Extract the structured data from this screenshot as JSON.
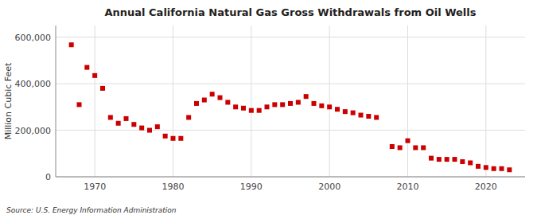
{
  "chart_data": {
    "type": "scatter",
    "title": "Annual California Natural Gas Gross Withdrawals from Oil Wells",
    "ylabel": "Million Cubic Feet",
    "annotations": [
      "Source: U.S. Energy Information Administration"
    ],
    "x": [
      1967,
      1968,
      1969,
      1970,
      1971,
      1972,
      1973,
      1974,
      1975,
      1976,
      1977,
      1978,
      1979,
      1980,
      1981,
      1982,
      1983,
      1984,
      1985,
      1986,
      1987,
      1988,
      1989,
      1990,
      1991,
      1992,
      1993,
      1994,
      1995,
      1996,
      1997,
      1998,
      1999,
      2000,
      2001,
      2002,
      2003,
      2004,
      2005,
      2006,
      2008,
      2009,
      2010,
      2011,
      2012,
      2013,
      2014,
      2015,
      2016,
      2017,
      2018,
      2019,
      2020,
      2021,
      2022,
      2023
    ],
    "values": [
      567000,
      310000,
      470000,
      435000,
      380000,
      255000,
      230000,
      250000,
      225000,
      210000,
      200000,
      215000,
      175000,
      165000,
      165000,
      255000,
      315000,
      330000,
      355000,
      340000,
      320000,
      300000,
      295000,
      285000,
      285000,
      300000,
      310000,
      310000,
      315000,
      320000,
      345000,
      315000,
      305000,
      300000,
      290000,
      280000,
      275000,
      265000,
      260000,
      255000,
      130000,
      125000,
      155000,
      125000,
      125000,
      80000,
      75000,
      75000,
      75000,
      65000,
      60000,
      45000,
      40000,
      35000,
      35000,
      30000
    ],
    "color": "#cc0000",
    "marker": "square",
    "xlim": [
      1965,
      2025
    ],
    "xticks": [
      1970,
      1980,
      1990,
      2000,
      2010,
      2020
    ],
    "ylim": [
      0,
      650000
    ],
    "yticks": [
      0,
      {
        "value": 200000,
        "label": "200,000"
      },
      {
        "value": 400000,
        "label": "400,000"
      },
      {
        "value": 600000,
        "label": "600,000"
      }
    ],
    "grid": true
  }
}
